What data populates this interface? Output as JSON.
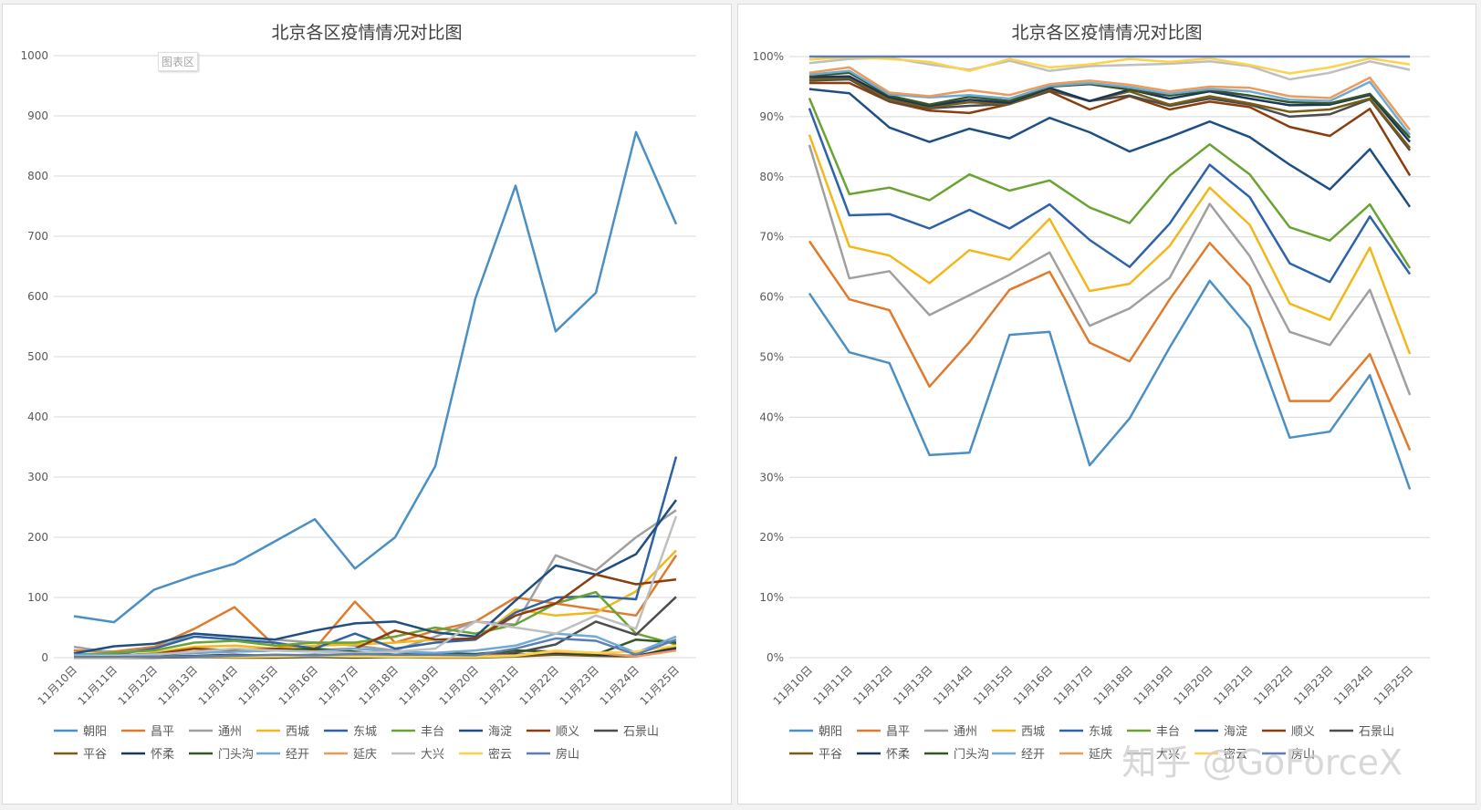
{
  "chart_data": [
    {
      "type": "line",
      "title": "北京各区疫情情况对比图",
      "badge": "图表区",
      "categories": [
        "11月10日",
        "11月11日",
        "11月12日",
        "11月13日",
        "11月14日",
        "11月15日",
        "11月16日",
        "11月17日",
        "11月18日",
        "11月19日",
        "11月20日",
        "11月21日",
        "11月22日",
        "11月23日",
        "11月24日",
        "11月25日"
      ],
      "ylim": [
        0,
        1000
      ],
      "yticks": [
        "0",
        "100",
        "200",
        "300",
        "400",
        "500",
        "600",
        "700",
        "800",
        "900",
        "1000"
      ],
      "grid": true,
      "legend": "bottom",
      "series": [
        {
          "name": "朝阳",
          "color": "#4a90c4",
          "values": [
            69,
            59,
            113,
            136,
            156,
            193,
            230,
            148,
            200,
            318,
            597,
            784,
            542,
            606,
            873,
            720
          ]
        },
        {
          "name": "昌平",
          "color": "#e07b2e",
          "values": [
            12,
            10,
            18,
            48,
            84,
            20,
            15,
            93,
            25,
            45,
            60,
            100,
            90,
            80,
            70,
            170
          ]
        },
        {
          "name": "通州",
          "color": "#a0a0a0",
          "values": [
            18,
            8,
            15,
            40,
            35,
            30,
            25,
            20,
            12,
            35,
            60,
            55,
            170,
            145,
            200,
            245
          ]
        },
        {
          "name": "西城",
          "color": "#f2b71a",
          "values": [
            3,
            2,
            8,
            18,
            20,
            15,
            20,
            22,
            25,
            30,
            30,
            80,
            70,
            75,
            110,
            178
          ]
        },
        {
          "name": "东城",
          "color": "#2e63a9",
          "values": [
            3,
            5,
            15,
            35,
            30,
            25,
            15,
            40,
            15,
            25,
            30,
            75,
            100,
            102,
            97,
            334
          ]
        },
        {
          "name": "丰台",
          "color": "#6aa332",
          "values": [
            5,
            8,
            12,
            25,
            28,
            20,
            25,
            25,
            35,
            50,
            40,
            55,
            90,
            109,
            40,
            22
          ]
        },
        {
          "name": "海淀",
          "color": "#1f4f82",
          "values": [
            7,
            19,
            23,
            40,
            35,
            30,
            45,
            57,
            60,
            42,
            35,
            95,
            153,
            138,
            172,
            262
          ]
        },
        {
          "name": "顺义",
          "color": "#8b3d0e",
          "values": [
            3,
            4,
            6,
            15,
            12,
            15,
            12,
            15,
            45,
            30,
            32,
            70,
            90,
            138,
            122,
            130
          ]
        },
        {
          "name": "石景山",
          "color": "#4d4d4d",
          "values": [
            2,
            1,
            2,
            3,
            5,
            3,
            5,
            3,
            3,
            4,
            3,
            8,
            22,
            60,
            38,
            101
          ]
        },
        {
          "name": "平谷",
          "color": "#7a5c12",
          "values": [
            0,
            0,
            0,
            1,
            0,
            0,
            1,
            0,
            1,
            0,
            0,
            2,
            5,
            3,
            2,
            18
          ]
        },
        {
          "name": "怀柔",
          "color": "#17375e",
          "values": [
            0,
            0,
            0,
            1,
            2,
            1,
            2,
            1,
            2,
            3,
            2,
            5,
            8,
            5,
            3,
            15
          ]
        },
        {
          "name": "门头沟",
          "color": "#375623",
          "values": [
            2,
            3,
            5,
            8,
            10,
            12,
            15,
            10,
            5,
            8,
            6,
            12,
            10,
            5,
            30,
            25
          ]
        },
        {
          "name": "经开",
          "color": "#6fa9d6",
          "values": [
            5,
            4,
            6,
            8,
            10,
            12,
            10,
            15,
            10,
            8,
            12,
            20,
            40,
            35,
            8,
            35
          ]
        },
        {
          "name": "延庆",
          "color": "#eb9b5a",
          "values": [
            1,
            1,
            2,
            2,
            3,
            2,
            3,
            2,
            3,
            2,
            3,
            4,
            10,
            8,
            2,
            12
          ]
        },
        {
          "name": "大兴",
          "color": "#bfbfbf",
          "values": [
            2,
            3,
            5,
            10,
            15,
            12,
            10,
            8,
            10,
            15,
            60,
            50,
            40,
            70,
            48,
            235
          ]
        },
        {
          "name": "密云",
          "color": "#ffd24d",
          "values": [
            0,
            0,
            1,
            2,
            1,
            2,
            3,
            2,
            2,
            1,
            1,
            3,
            12,
            8,
            10,
            20
          ]
        },
        {
          "name": "房山",
          "color": "#5b7fb5",
          "values": [
            1,
            1,
            2,
            2,
            3,
            5,
            4,
            6,
            5,
            5,
            4,
            15,
            32,
            28,
            5,
            30
          ]
        }
      ]
    },
    {
      "type": "line",
      "title": "北京各区疫情情况对比图",
      "categories": [
        "11月10日",
        "11月11日",
        "11月12日",
        "11月13日",
        "11月14日",
        "11月15日",
        "11月16日",
        "11月17日",
        "11月18日",
        "11月19日",
        "11月20日",
        "11月21日",
        "11月22日",
        "11月23日",
        "11月24日",
        "11月25日"
      ],
      "ylim": [
        0,
        100
      ],
      "yticks": [
        "0%",
        "10%",
        "20%",
        "30%",
        "40%",
        "50%",
        "60%",
        "70%",
        "80%",
        "90%",
        "100%"
      ],
      "grid": true,
      "legend": "bottom",
      "series": [
        {
          "name": "朝阳",
          "color": "#4a90c4",
          "values": [
            60.6,
            50.8,
            49.0,
            33.7,
            34.1,
            53.7,
            54.2,
            32.0,
            39.8,
            51.6,
            62.7,
            54.8,
            36.6,
            37.6,
            47.0,
            28.0
          ]
        },
        {
          "name": "昌平",
          "color": "#e07b2e",
          "values": [
            69.3,
            59.6,
            57.8,
            45.1,
            52.5,
            61.2,
            64.2,
            52.4,
            49.3,
            59.6,
            69.0,
            61.8,
            42.7,
            42.7,
            50.5,
            34.5
          ]
        },
        {
          "name": "通州",
          "color": "#a0a0a0",
          "values": [
            85.3,
            63.1,
            64.3,
            57.0,
            60.3,
            63.7,
            67.4,
            55.2,
            58.1,
            63.2,
            75.5,
            66.8,
            54.2,
            52.0,
            61.2,
            43.7
          ]
        },
        {
          "name": "西城",
          "color": "#f2b71a",
          "values": [
            87.0,
            68.4,
            66.9,
            62.3,
            67.8,
            66.2,
            73.0,
            61.0,
            62.2,
            68.5,
            78.2,
            72.0,
            58.9,
            56.2,
            68.2,
            50.5
          ]
        },
        {
          "name": "东城",
          "color": "#2e63a9",
          "values": [
            91.4,
            73.6,
            73.8,
            71.4,
            74.5,
            71.4,
            75.4,
            69.5,
            65.0,
            72.2,
            82.0,
            76.6,
            65.6,
            62.5,
            73.4,
            63.8
          ]
        },
        {
          "name": "丰台",
          "color": "#6aa332",
          "values": [
            93.1,
            77.1,
            78.2,
            76.1,
            80.4,
            77.7,
            79.4,
            74.9,
            72.3,
            80.2,
            85.4,
            80.4,
            71.6,
            69.4,
            75.4,
            64.8
          ]
        },
        {
          "name": "海淀",
          "color": "#1f4f82",
          "values": [
            94.6,
            93.9,
            88.2,
            85.8,
            88.0,
            86.4,
            89.8,
            87.4,
            84.2,
            86.6,
            89.2,
            86.6,
            82.0,
            77.9,
            84.6,
            75.0
          ]
        },
        {
          "name": "顺义",
          "color": "#8b3d0e",
          "values": [
            95.6,
            95.6,
            92.5,
            91.0,
            90.6,
            92.1,
            94.2,
            91.2,
            93.4,
            91.2,
            92.5,
            91.6,
            88.3,
            86.8,
            91.3,
            80.2
          ]
        },
        {
          "name": "石景山",
          "color": "#4d4d4d",
          "values": [
            96.0,
            96.2,
            92.6,
            91.4,
            91.8,
            92.1,
            94.4,
            92.6,
            93.5,
            91.8,
            93.0,
            92.0,
            90.0,
            90.4,
            92.9,
            84.4
          ]
        },
        {
          "name": "平谷",
          "color": "#7a5c12",
          "values": [
            96.2,
            96.5,
            92.8,
            91.6,
            92.4,
            92.1,
            94.6,
            92.6,
            94.2,
            92.0,
            93.4,
            92.2,
            90.8,
            91.2,
            93.0,
            84.8
          ]
        },
        {
          "name": "怀柔",
          "color": "#17375e",
          "values": [
            96.6,
            96.7,
            93.2,
            91.8,
            92.8,
            92.3,
            94.8,
            92.6,
            94.5,
            93.0,
            94.2,
            93.0,
            91.9,
            92.0,
            93.6,
            85.8
          ]
        },
        {
          "name": "门头沟",
          "color": "#375623",
          "values": [
            96.8,
            97.3,
            93.5,
            92.0,
            93.3,
            92.6,
            95.0,
            95.4,
            94.5,
            93.5,
            94.4,
            93.5,
            92.4,
            92.2,
            93.8,
            86.5
          ]
        },
        {
          "name": "经开",
          "color": "#6fa9d6",
          "values": [
            97.0,
            97.6,
            93.7,
            93.2,
            93.6,
            93.0,
            95.1,
            95.6,
            94.9,
            93.8,
            94.6,
            94.2,
            92.8,
            92.6,
            95.8,
            87.0
          ]
        },
        {
          "name": "延庆",
          "color": "#eb9b5a",
          "values": [
            97.3,
            98.2,
            94.0,
            93.4,
            94.4,
            93.6,
            95.4,
            96.0,
            95.3,
            94.2,
            95.0,
            94.8,
            93.4,
            93.1,
            96.5,
            87.8
          ]
        },
        {
          "name": "大兴",
          "color": "#bfbfbf",
          "values": [
            98.9,
            99.6,
            99.8,
            98.7,
            97.8,
            99.3,
            97.6,
            98.4,
            98.6,
            98.8,
            99.2,
            98.4,
            96.2,
            97.3,
            99.2,
            97.8
          ]
        },
        {
          "name": "密云",
          "color": "#ffd24d",
          "values": [
            99.5,
            99.9,
            99.6,
            99.1,
            97.6,
            99.6,
            98.2,
            98.7,
            99.6,
            99.1,
            99.7,
            98.6,
            97.2,
            98.2,
            99.7,
            98.7
          ]
        },
        {
          "name": "房山",
          "color": "#5b7fb5",
          "values": [
            100,
            100,
            100,
            100,
            100,
            100,
            100,
            100,
            100,
            100,
            100,
            100,
            100,
            100,
            100,
            100
          ]
        }
      ]
    }
  ],
  "watermark": "知乎 @GoForceX"
}
